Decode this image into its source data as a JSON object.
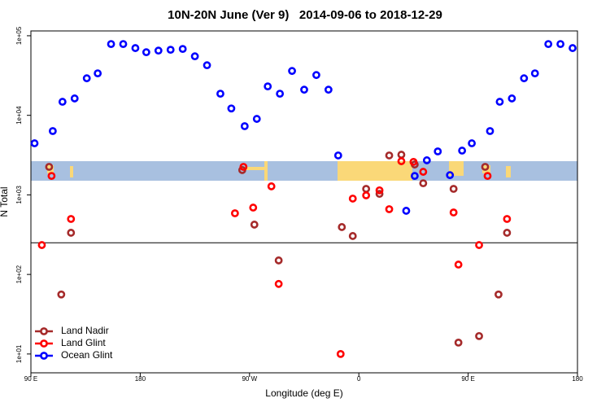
{
  "chart_data": {
    "type": "scatter",
    "title": "10N-20N June (Ver 9)   2014-09-06 to 2018-12-29",
    "x_label": "Longitude (deg E)",
    "y_label": "N Total",
    "xlim": [
      90,
      540
    ],
    "ylim": [
      5.8,
      115000
    ],
    "ylog": true,
    "xticks": [
      {
        "value": 90,
        "label": "90 E"
      },
      180,
      {
        "value": 270,
        "label": "90 W"
      },
      {
        "value": 360,
        "label": "0"
      },
      {
        "value": 450,
        "label": "90 E"
      },
      {
        "value": 540,
        "label": "180"
      }
    ],
    "yticks": [
      {
        "value": 10,
        "label": "1e+01"
      },
      {
        "value": 100,
        "label": "1e+02"
      },
      {
        "value": 1000,
        "label": "1e+03"
      },
      {
        "value": 10000,
        "label": "1e+04"
      },
      {
        "value": 100000,
        "label": "1e+05"
      }
    ],
    "hline": 250,
    "legend": "lower left",
    "series": [
      {
        "name": "Land Nadir",
        "color": "#a52a2a",
        "x": [
          105,
          115,
          123,
          264,
          274,
          294,
          346,
          355,
          366,
          377,
          385,
          395,
          406,
          413,
          438,
          442,
          459,
          464,
          475,
          482
        ],
        "values": [
          2250,
          56,
          334,
          2050,
          423,
          150,
          394,
          304,
          1190,
          1030,
          3130,
          3200,
          2410,
          1400,
          1190,
          13.9,
          16.8,
          2250,
          56,
          334
        ]
      },
      {
        "name": "Land Glint",
        "color": "#ff0000",
        "x": [
          99,
          107,
          123,
          258,
          265,
          273,
          288,
          294,
          345,
          355,
          366,
          377,
          385,
          395,
          405,
          413,
          438,
          442,
          459,
          466,
          482
        ],
        "values": [
          234,
          1730,
          498,
          587,
          2250,
          692,
          1280,
          76,
          10,
          898,
          986,
          1140,
          661,
          2650,
          2600,
          1950,
          601,
          133,
          234,
          1730,
          498
        ]
      },
      {
        "name": "Ocean Glint",
        "color": "#0000ff",
        "x": [
          93,
          108,
          116,
          126,
          136,
          145,
          156,
          166,
          176,
          185,
          195,
          205,
          215,
          225,
          235,
          246,
          255,
          266,
          276,
          285,
          295,
          305,
          315,
          325,
          335,
          343,
          399,
          406,
          416,
          425,
          435,
          445,
          453,
          468,
          476,
          486,
          496,
          505,
          516,
          526,
          536
        ],
        "values": [
          4450,
          6340,
          14800,
          16300,
          29200,
          33700,
          78700,
          78700,
          70000,
          62100,
          65100,
          66700,
          68300,
          55200,
          42600,
          18700,
          12200,
          7300,
          9020,
          23100,
          18700,
          36100,
          21000,
          32100,
          21000,
          3130,
          631,
          1730,
          2720,
          3520,
          1770,
          3600,
          4450,
          6340,
          14800,
          16300,
          29200,
          33700,
          78700,
          78700,
          70000
        ]
      }
    ]
  }
}
